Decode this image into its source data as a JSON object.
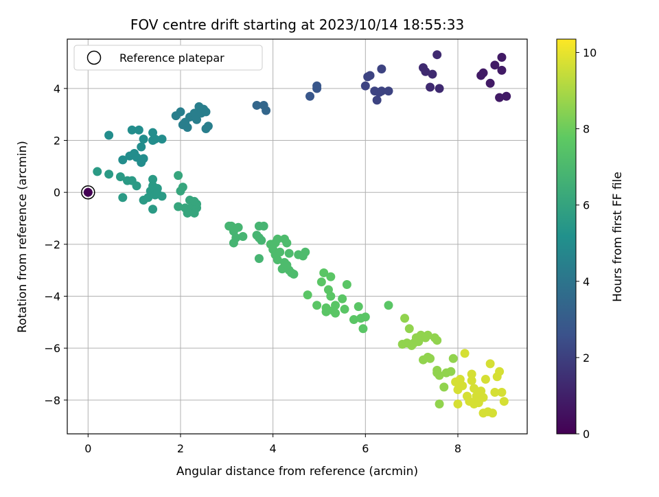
{
  "chart_data": {
    "type": "scatter",
    "title": "FOV centre drift starting at 2023/10/14 18:55:33",
    "xlabel": "Angular distance from reference (arcmin)",
    "ylabel": "Rotation from reference (arcmin)",
    "xlim": [
      -0.45,
      9.5
    ],
    "ylim": [
      -9.3,
      5.9
    ],
    "xticks": [
      0,
      2,
      4,
      6,
      8
    ],
    "yticks": [
      -8,
      -6,
      -4,
      -2,
      0,
      2,
      4
    ],
    "grid": true,
    "legend": {
      "placement": "upper-left",
      "entries": [
        "Reference platepar"
      ]
    },
    "reference": {
      "x": 0,
      "y": 0,
      "c": 0
    },
    "colorbar": {
      "label": "Hours from first FF file",
      "min": 0,
      "max": 10.35,
      "ticks": [
        0,
        2,
        4,
        6,
        8,
        10
      ],
      "colormap": "viridis"
    },
    "points": [
      [
        4.8,
        3.7,
        2.8
      ],
      [
        4.95,
        4.0,
        2.8
      ],
      [
        4.95,
        4.1,
        2.8
      ],
      [
        3.65,
        3.35,
        3.4
      ],
      [
        3.8,
        3.35,
        3.4
      ],
      [
        3.85,
        3.15,
        3.4
      ],
      [
        6.0,
        4.1,
        2.1
      ],
      [
        6.05,
        4.45,
        2.1
      ],
      [
        6.1,
        4.5,
        2.1
      ],
      [
        6.2,
        3.9,
        2.1
      ],
      [
        6.25,
        3.55,
        2.1
      ],
      [
        6.3,
        3.85,
        2.1
      ],
      [
        6.35,
        3.9,
        2.1
      ],
      [
        6.35,
        4.75,
        2.1
      ],
      [
        6.5,
        3.9,
        2.1
      ],
      [
        7.25,
        4.8,
        1.3
      ],
      [
        7.3,
        4.65,
        1.3
      ],
      [
        7.4,
        4.05,
        1.3
      ],
      [
        7.45,
        4.55,
        1.3
      ],
      [
        7.55,
        5.3,
        1.3
      ],
      [
        7.6,
        4.0,
        1.3
      ],
      [
        8.5,
        4.5,
        0.8
      ],
      [
        8.55,
        4.6,
        0.8
      ],
      [
        8.7,
        4.2,
        0.8
      ],
      [
        8.8,
        4.9,
        0.8
      ],
      [
        8.9,
        3.65,
        0.8
      ],
      [
        8.95,
        4.7,
        0.8
      ],
      [
        8.95,
        5.2,
        0.8
      ],
      [
        9.05,
        3.7,
        0.8
      ],
      [
        1.9,
        2.95,
        4.4
      ],
      [
        2.0,
        3.1,
        4.4
      ],
      [
        2.05,
        2.6,
        4.4
      ],
      [
        2.1,
        2.7,
        4.4
      ],
      [
        2.15,
        2.5,
        4.4
      ],
      [
        2.2,
        2.9,
        4.4
      ],
      [
        2.3,
        3.05,
        4.4
      ],
      [
        2.35,
        2.8,
        4.4
      ],
      [
        2.4,
        3.3,
        4.4
      ],
      [
        2.45,
        3.05,
        4.4
      ],
      [
        2.5,
        3.2,
        4.4
      ],
      [
        2.55,
        3.1,
        4.4
      ],
      [
        2.55,
        2.45,
        4.4
      ],
      [
        2.6,
        2.55,
        4.4
      ],
      [
        0.45,
        2.2,
        5.0
      ],
      [
        0.75,
        1.25,
        5.0
      ],
      [
        0.9,
        1.4,
        5.0
      ],
      [
        0.95,
        2.4,
        5.0
      ],
      [
        1.0,
        1.5,
        5.0
      ],
      [
        1.05,
        1.35,
        5.0
      ],
      [
        1.1,
        2.4,
        5.0
      ],
      [
        1.15,
        1.15,
        5.0
      ],
      [
        1.15,
        1.75,
        5.0
      ],
      [
        1.2,
        1.3,
        5.0
      ],
      [
        1.2,
        2.05,
        5.0
      ],
      [
        1.4,
        2.0,
        5.0
      ],
      [
        1.4,
        2.3,
        5.0
      ],
      [
        1.45,
        2.05,
        5.0
      ],
      [
        1.6,
        2.05,
        5.0
      ],
      [
        0.2,
        0.8,
        5.6
      ],
      [
        0.45,
        0.7,
        5.6
      ],
      [
        0.7,
        0.6,
        5.6
      ],
      [
        0.75,
        -0.2,
        5.6
      ],
      [
        0.85,
        0.45,
        5.6
      ],
      [
        0.95,
        0.45,
        5.6
      ],
      [
        1.05,
        0.25,
        5.6
      ],
      [
        1.2,
        -0.3,
        5.6
      ],
      [
        1.3,
        -0.2,
        5.6
      ],
      [
        1.35,
        0.05,
        5.6
      ],
      [
        1.4,
        0.5,
        5.6
      ],
      [
        1.4,
        0.25,
        5.6
      ],
      [
        1.4,
        -0.05,
        5.6
      ],
      [
        1.45,
        0.1,
        5.6
      ],
      [
        1.45,
        -0.1,
        5.6
      ],
      [
        1.5,
        0.15,
        5.6
      ],
      [
        1.5,
        -0.05,
        5.6
      ],
      [
        1.6,
        -0.15,
        5.6
      ],
      [
        1.4,
        -0.65,
        5.6
      ],
      [
        1.95,
        -0.55,
        6.1
      ],
      [
        1.95,
        0.65,
        6.1
      ],
      [
        2.0,
        0.05,
        6.1
      ],
      [
        2.05,
        0.2,
        6.1
      ],
      [
        2.1,
        -0.6,
        6.1
      ],
      [
        2.15,
        -0.8,
        6.1
      ],
      [
        2.2,
        -0.3,
        6.1
      ],
      [
        2.25,
        -0.55,
        6.1
      ],
      [
        2.3,
        -0.7,
        6.1
      ],
      [
        2.3,
        -0.8,
        6.1
      ],
      [
        2.35,
        -0.6,
        6.1
      ],
      [
        2.35,
        -0.45,
        6.1
      ],
      [
        2.3,
        -0.35,
        6.1
      ],
      [
        3.05,
        -1.3,
        6.8
      ],
      [
        3.1,
        -1.3,
        6.8
      ],
      [
        3.15,
        -1.5,
        6.8
      ],
      [
        3.15,
        -1.95,
        6.8
      ],
      [
        3.2,
        -1.75,
        6.8
      ],
      [
        3.25,
        -1.35,
        6.8
      ],
      [
        3.35,
        -1.7,
        6.8
      ],
      [
        3.65,
        -1.65,
        6.8
      ],
      [
        3.7,
        -1.75,
        6.8
      ],
      [
        3.7,
        -2.55,
        6.8
      ],
      [
        3.75,
        -1.85,
        6.8
      ],
      [
        3.7,
        -1.3,
        6.8
      ],
      [
        3.8,
        -1.3,
        6.8
      ],
      [
        3.95,
        -2.0,
        7.1
      ],
      [
        4.0,
        -2.2,
        7.1
      ],
      [
        4.05,
        -1.95,
        7.1
      ],
      [
        4.05,
        -2.4,
        7.1
      ],
      [
        4.1,
        -2.6,
        7.1
      ],
      [
        4.1,
        -1.8,
        7.1
      ],
      [
        4.15,
        -2.3,
        7.1
      ],
      [
        4.2,
        -2.95,
        7.1
      ],
      [
        4.25,
        -2.7,
        7.1
      ],
      [
        4.25,
        -1.8,
        7.1
      ],
      [
        4.3,
        -1.95,
        7.1
      ],
      [
        4.3,
        -2.8,
        7.1
      ],
      [
        4.35,
        -2.35,
        7.1
      ],
      [
        4.35,
        -3.0,
        7.1
      ],
      [
        4.4,
        -3.1,
        7.1
      ],
      [
        4.45,
        -3.15,
        7.1
      ],
      [
        4.55,
        -2.4,
        7.1
      ],
      [
        4.65,
        -2.45,
        7.1
      ],
      [
        4.7,
        -2.3,
        7.1
      ],
      [
        4.75,
        -3.95,
        7.6
      ],
      [
        4.95,
        -4.35,
        7.6
      ],
      [
        5.05,
        -3.45,
        7.6
      ],
      [
        5.1,
        -3.1,
        7.6
      ],
      [
        5.15,
        -4.45,
        7.6
      ],
      [
        5.15,
        -4.6,
        7.6
      ],
      [
        5.2,
        -3.75,
        7.6
      ],
      [
        5.25,
        -3.25,
        7.6
      ],
      [
        5.25,
        -4.0,
        7.6
      ],
      [
        5.3,
        -4.55,
        7.6
      ],
      [
        5.35,
        -4.65,
        7.6
      ],
      [
        5.35,
        -4.35,
        7.6
      ],
      [
        5.5,
        -4.1,
        7.6
      ],
      [
        5.55,
        -4.5,
        7.6
      ],
      [
        5.6,
        -3.55,
        7.6
      ],
      [
        5.75,
        -4.9,
        7.6
      ],
      [
        5.85,
        -4.4,
        7.6
      ],
      [
        5.9,
        -4.85,
        7.6
      ],
      [
        5.95,
        -5.25,
        7.6
      ],
      [
        6.0,
        -4.8,
        7.6
      ],
      [
        6.5,
        -4.35,
        7.6
      ],
      [
        6.8,
        -5.85,
        8.6
      ],
      [
        6.85,
        -4.85,
        8.6
      ],
      [
        6.9,
        -5.8,
        8.6
      ],
      [
        6.95,
        -5.25,
        8.6
      ],
      [
        7.0,
        -5.9,
        8.6
      ],
      [
        7.05,
        -5.8,
        8.6
      ],
      [
        7.1,
        -5.6,
        8.6
      ],
      [
        7.15,
        -5.75,
        8.6
      ],
      [
        7.2,
        -5.5,
        8.6
      ],
      [
        7.25,
        -6.45,
        8.6
      ],
      [
        7.3,
        -5.6,
        8.6
      ],
      [
        7.35,
        -5.5,
        8.6
      ],
      [
        7.35,
        -6.35,
        8.6
      ],
      [
        7.4,
        -6.4,
        8.6
      ],
      [
        7.5,
        -5.6,
        8.6
      ],
      [
        7.55,
        -6.85,
        8.6
      ],
      [
        7.55,
        -6.95,
        8.6
      ],
      [
        7.55,
        -5.7,
        8.6
      ],
      [
        7.6,
        -7.05,
        8.6
      ],
      [
        7.6,
        -8.15,
        8.6
      ],
      [
        7.7,
        -7.5,
        8.6
      ],
      [
        7.75,
        -6.95,
        8.6
      ],
      [
        7.85,
        -6.9,
        8.6
      ],
      [
        7.9,
        -6.4,
        8.6
      ],
      [
        7.95,
        -7.3,
        9.7
      ],
      [
        8.0,
        -7.6,
        9.7
      ],
      [
        8.0,
        -8.15,
        9.7
      ],
      [
        8.05,
        -7.2,
        9.7
      ],
      [
        8.1,
        -7.45,
        9.7
      ],
      [
        8.15,
        -6.2,
        9.7
      ],
      [
        8.2,
        -7.85,
        9.7
      ],
      [
        8.25,
        -8.05,
        9.7
      ],
      [
        8.3,
        -7.0,
        9.7
      ],
      [
        8.3,
        -7.25,
        9.7
      ],
      [
        8.35,
        -7.55,
        9.7
      ],
      [
        8.35,
        -8.15,
        9.7
      ],
      [
        8.4,
        -7.85,
        9.7
      ],
      [
        8.45,
        -8.1,
        9.7
      ],
      [
        8.5,
        -7.65,
        9.7
      ],
      [
        8.55,
        -7.9,
        9.7
      ],
      [
        8.55,
        -8.5,
        9.7
      ],
      [
        8.6,
        -7.2,
        9.7
      ],
      [
        8.65,
        -8.45,
        9.7
      ],
      [
        8.7,
        -6.6,
        9.7
      ],
      [
        8.75,
        -8.5,
        9.7
      ],
      [
        8.8,
        -7.7,
        9.7
      ],
      [
        8.85,
        -7.1,
        9.7
      ],
      [
        8.9,
        -6.9,
        9.7
      ],
      [
        9.0,
        -8.05,
        9.7
      ],
      [
        8.95,
        -7.7,
        9.7
      ]
    ]
  }
}
